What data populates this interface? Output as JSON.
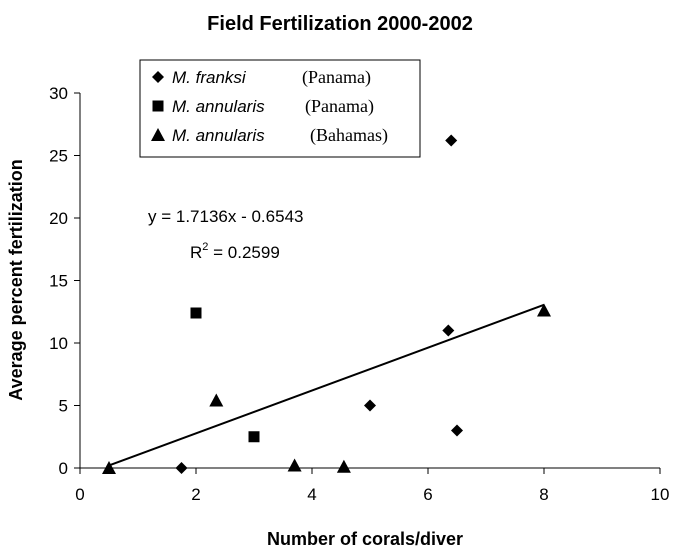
{
  "chart_data": {
    "type": "scatter",
    "title": "Field Fertilization 2000-2002",
    "x_label": "Number of corals/diver",
    "y_label": "Average percent fertilization",
    "xlim": [
      0,
      10
    ],
    "xticks": [
      0,
      2,
      4,
      6,
      8,
      10
    ],
    "ylim": [
      0,
      30
    ],
    "yticks": [
      0,
      5,
      10,
      15,
      20,
      25,
      30
    ],
    "legend": "top-left",
    "series": [
      {
        "name": "M. franksi",
        "region": "(Panama)",
        "marker": "diamond",
        "color": "#000000",
        "x": [
          1.75,
          5,
          6.5,
          6.35,
          6.4
        ],
        "y": [
          0,
          5,
          3,
          11,
          26.2
        ]
      },
      {
        "name": "M. annularis",
        "region": "(Panama)",
        "marker": "square",
        "color": "#000000",
        "x": [
          2,
          3
        ],
        "y": [
          12.4,
          2.5
        ]
      },
      {
        "name": "M. annularis",
        "region": "(Bahamas)",
        "marker": "triangle",
        "color": "#000000",
        "x": [
          0.5,
          2.35,
          3.7,
          4.55,
          8
        ],
        "y": [
          0,
          5.4,
          0.2,
          0.1,
          12.6
        ]
      }
    ],
    "trendline": {
      "slope": 1.7136,
      "intercept": -0.6543,
      "xrange": [
        0.5,
        8
      ],
      "label": "y = 1.7136x - 0.6543",
      "r_squared": {
        "base": "R",
        "sup": "2",
        "rest": " = 0.2599"
      }
    }
  }
}
